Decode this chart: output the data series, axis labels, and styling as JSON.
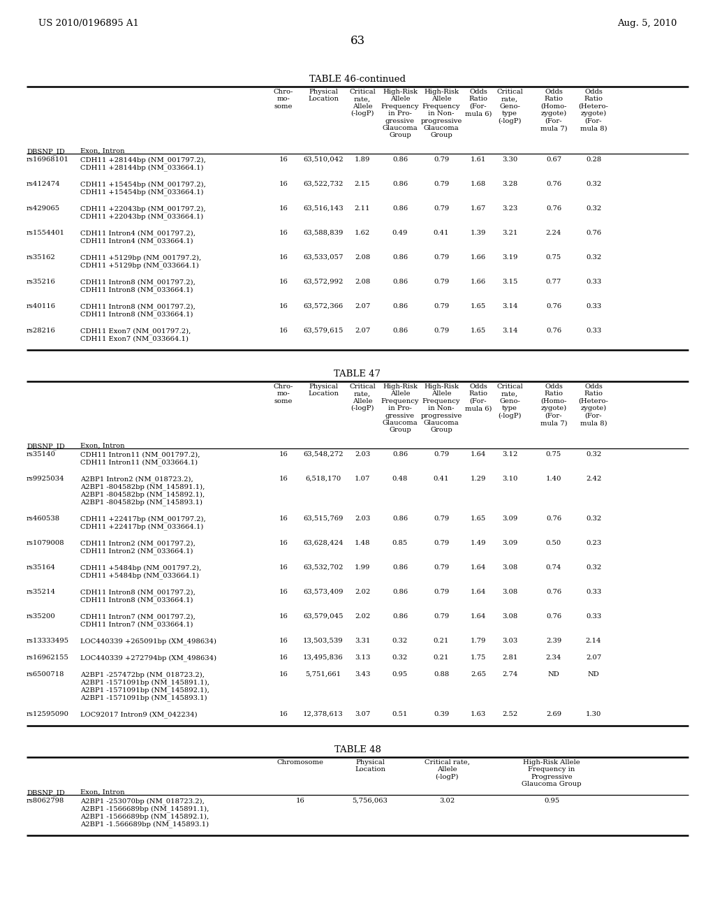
{
  "header_left": "US 2010/0196895 A1",
  "header_right": "Aug. 5, 2010",
  "page_number": "63",
  "table46_title": "TABLE 46-continued",
  "table47_title": "TABLE 47",
  "table48_title": "TABLE 48",
  "table46_rows": [
    [
      "rs16968101",
      "CDH11 +28144bp (NM_001797.2),\nCDH11 +28144bp (NM_033664.1)",
      "16",
      "63,510,042",
      "1.89",
      "0.86",
      "0.79",
      "1.61",
      "3.30",
      "0.67",
      "0.28"
    ],
    [
      "rs412474",
      "CDH11 +15454bp (NM_001797.2),\nCDH11 +15454bp (NM_033664.1)",
      "16",
      "63,522,732",
      "2.15",
      "0.86",
      "0.79",
      "1.68",
      "3.28",
      "0.76",
      "0.32"
    ],
    [
      "rs429065",
      "CDH11 +22043bp (NM_001797.2),\nCDH11 +22043bp (NM_033664.1)",
      "16",
      "63,516,143",
      "2.11",
      "0.86",
      "0.79",
      "1.67",
      "3.23",
      "0.76",
      "0.32"
    ],
    [
      "rs1554401",
      "CDH11 Intron4 (NM_001797.2),\nCDH11 Intron4 (NM_033664.1)",
      "16",
      "63,588,839",
      "1.62",
      "0.49",
      "0.41",
      "1.39",
      "3.21",
      "2.24",
      "0.76"
    ],
    [
      "rs35162",
      "CDH11 +5129bp (NM_001797.2),\nCDH11 +5129bp (NM_033664.1)",
      "16",
      "63,533,057",
      "2.08",
      "0.86",
      "0.79",
      "1.66",
      "3.19",
      "0.75",
      "0.32"
    ],
    [
      "rs35216",
      "CDH11 Intron8 (NM_001797.2),\nCDH11 Intron8 (NM_033664.1)",
      "16",
      "63,572,992",
      "2.08",
      "0.86",
      "0.79",
      "1.66",
      "3.15",
      "0.77",
      "0.33"
    ],
    [
      "rs40116",
      "CDH11 Intron8 (NM_001797.2),\nCDH11 Intron8 (NM_033664.1)",
      "16",
      "63,572,366",
      "2.07",
      "0.86",
      "0.79",
      "1.65",
      "3.14",
      "0.76",
      "0.33"
    ],
    [
      "rs28216",
      "CDH11 Exon7 (NM_001797.2),\nCDH11 Exon7 (NM_033664.1)",
      "16",
      "63,579,615",
      "2.07",
      "0.86",
      "0.79",
      "1.65",
      "3.14",
      "0.76",
      "0.33"
    ]
  ],
  "table47_rows": [
    [
      "rs35140",
      "CDH11 Intron11 (NM_001797.2),\nCDH11 Intron11 (NM_033664.1)",
      "16",
      "63,548,272",
      "2.03",
      "0.86",
      "0.79",
      "1.64",
      "3.12",
      "0.75",
      "0.32"
    ],
    [
      "rs9925034",
      "A2BP1 Intron2 (NM_018723.2),\nA2BP1 -804582bp (NM_145891.1),\nA2BP1 -804582bp (NM_145892.1),\nA2BP1 -804582bp (NM_145893.1)",
      "16",
      "6,518,170",
      "1.07",
      "0.48",
      "0.41",
      "1.29",
      "3.10",
      "1.40",
      "2.42"
    ],
    [
      "rs460538",
      "CDH11 +22417bp (NM_001797.2),\nCDH11 +22417bp (NM_033664.1)",
      "16",
      "63,515,769",
      "2.03",
      "0.86",
      "0.79",
      "1.65",
      "3.09",
      "0.76",
      "0.32"
    ],
    [
      "rs1079008",
      "CDH11 Intron2 (NM_001797.2),\nCDH11 Intron2 (NM_033664.1)",
      "16",
      "63,628,424",
      "1.48",
      "0.85",
      "0.79",
      "1.49",
      "3.09",
      "0.50",
      "0.23"
    ],
    [
      "rs35164",
      "CDH11 +5484bp (NM_001797.2),\nCDH11 +5484bp (NM_033664.1)",
      "16",
      "63,532,702",
      "1.99",
      "0.86",
      "0.79",
      "1.64",
      "3.08",
      "0.74",
      "0.32"
    ],
    [
      "rs35214",
      "CDH11 Intron8 (NM_001797.2),\nCDH11 Intron8 (NM_033664.1)",
      "16",
      "63,573,409",
      "2.02",
      "0.86",
      "0.79",
      "1.64",
      "3.08",
      "0.76",
      "0.33"
    ],
    [
      "rs35200",
      "CDH11 Intron7 (NM_001797.2),\nCDH11 Intron7 (NM_033664.1)",
      "16",
      "63,579,045",
      "2.02",
      "0.86",
      "0.79",
      "1.64",
      "3.08",
      "0.76",
      "0.33"
    ],
    [
      "rs13333495",
      "LOC440339 +265091bp (XM_498634)",
      "16",
      "13,503,539",
      "3.31",
      "0.32",
      "0.21",
      "1.79",
      "3.03",
      "2.39",
      "2.14"
    ],
    [
      "rs16962155",
      "LOC440339 +272794bp (XM_498634)",
      "16",
      "13,495,836",
      "3.13",
      "0.32",
      "0.21",
      "1.75",
      "2.81",
      "2.34",
      "2.07"
    ],
    [
      "rs6500718",
      "A2BP1 -257472bp (NM_018723.2),\nA2BP1 -1571091bp (NM_145891.1),\nA2BP1 -1571091bp (NM_145892.1),\nA2BP1 -1571091bp (NM_145893.1)",
      "16",
      "5,751,661",
      "3.43",
      "0.95",
      "0.88",
      "2.65",
      "2.74",
      "ND",
      "ND"
    ],
    [
      "rs12595090",
      "LOC92017 Intron9 (XM_042234)",
      "16",
      "12,378,613",
      "3.07",
      "0.51",
      "0.39",
      "1.63",
      "2.52",
      "2.69",
      "1.30"
    ]
  ],
  "table48_rows": [
    [
      "rs8062798",
      "A2BP1 -253070bp (NM_018723.2),\nA2BP1 -1566689bp (NM_145891.1),\nA2BP1 -1566689bp (NM_145892.1),\nA2BP1 -1.566689bp (NM_145893.1)",
      "16",
      "5,756,063",
      "3.02",
      "0.95"
    ]
  ],
  "col_headers_main": [
    [
      "",
      "",
      "Chro-\nmo-\nsome",
      "Physical\nLocation",
      "Critical\nrate,\nAllele\n(-logP)",
      "High-Risk\nAllele\nFrequency\nin Pro-\ngressive\nGlaucoma\nGroup",
      "High-Risk\nAllele\nFrequency\nin Non-\nprogressive\nGlaucoma\nGroup",
      "Odds\nRatio\n(For-\nmula 6)",
      "Critical\nrate,\nGeno-\ntype\n(-logP)",
      "Odds\nRatio\n(Homo-\nzygote)\n(For-\nmula 7)",
      "Odds\nRatio\n(Hetero-\nzygote)\n(For-\nmula 8)"
    ],
    [
      "DBSNP_ID",
      "Exon, Intron",
      "",
      "",
      "",
      "",
      "",
      "",
      "",
      "",
      ""
    ]
  ],
  "col_headers_t48": [
    [
      "",
      "",
      "Chromosome",
      "Physical\nLocation",
      "Critical rate,\nAllele\n(-logP)",
      "High-Risk Allele\nFrequency in\nProgressive\nGlaucoma Group"
    ],
    [
      "DBSNP_ID",
      "Exon, Intron",
      "",
      "",
      "",
      ""
    ]
  ]
}
